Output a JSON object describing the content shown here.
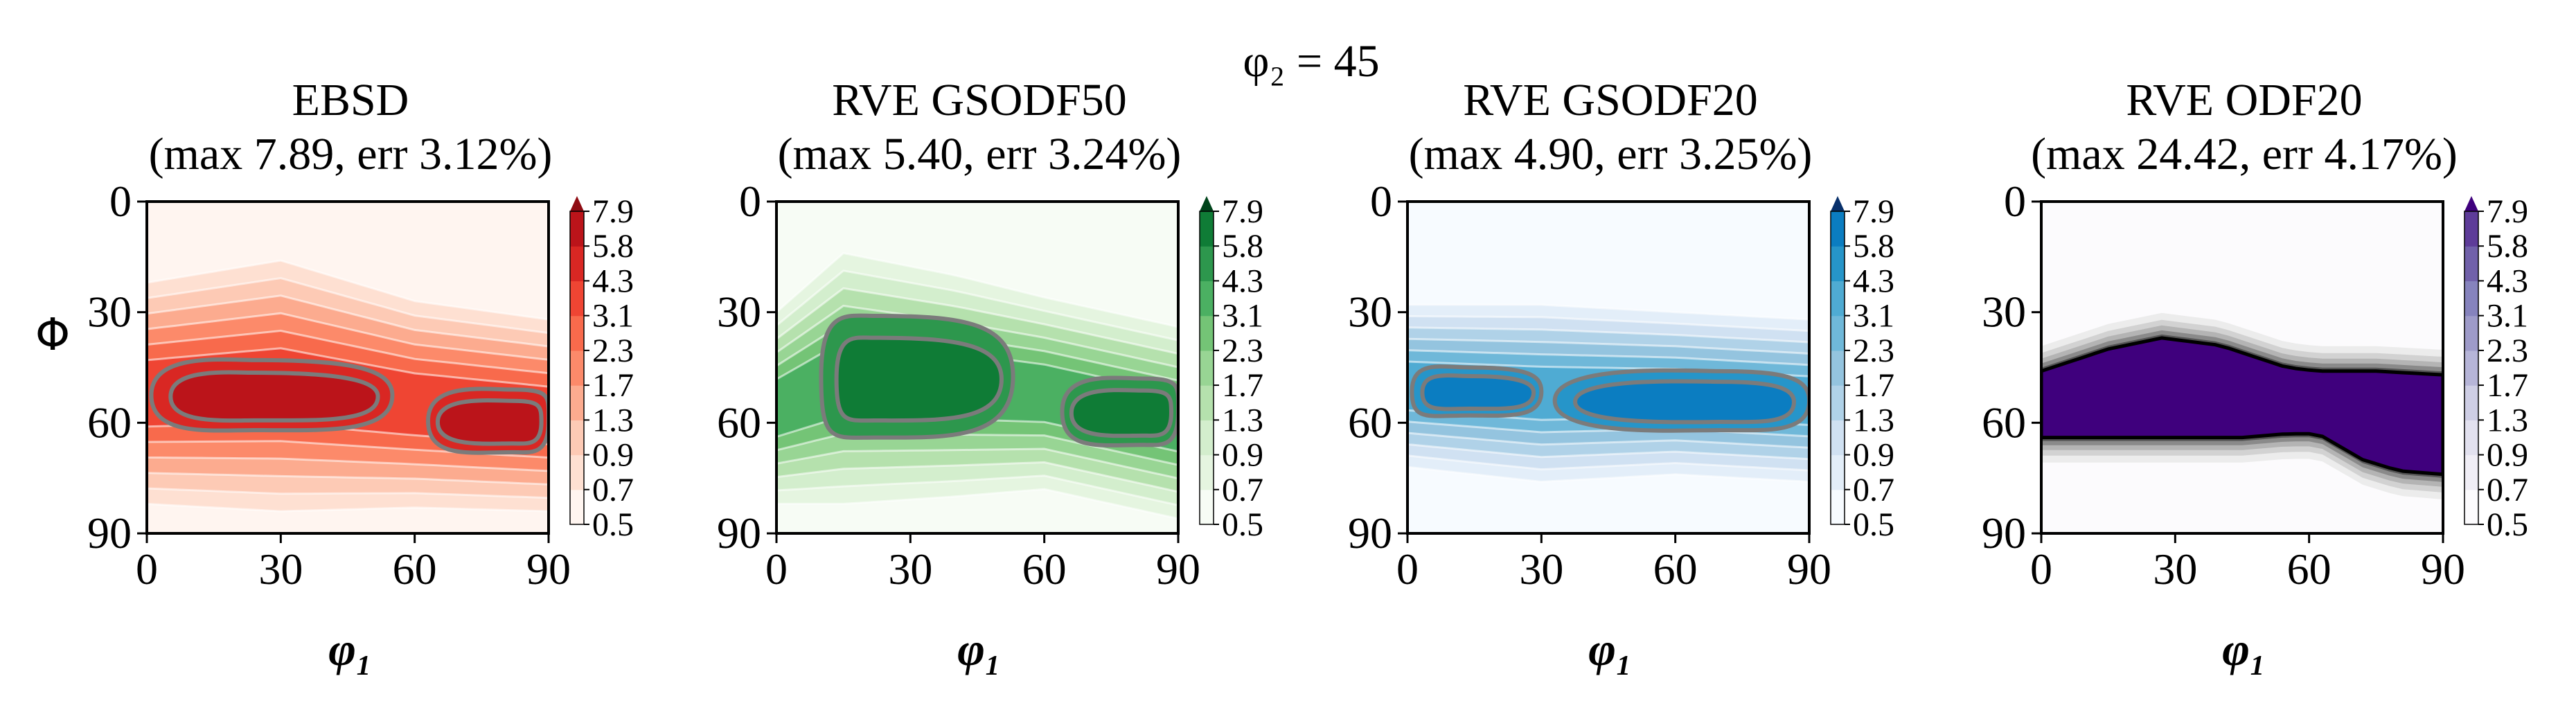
{
  "figure": {
    "suptitle": "φ₂ = 45",
    "ylabel": "Φ",
    "xlabel": "φ₁"
  },
  "chart_data": [
    {
      "type": "heatmap",
      "title_line1": "EBSD",
      "title_line2": "(max 7.89, err 3.12%)",
      "xlabel": "φ₁",
      "ylabel": "Φ",
      "xlim": [
        0,
        90
      ],
      "ylim": [
        90,
        0
      ],
      "xticks": [
        0,
        30,
        60,
        90
      ],
      "yticks": [
        0,
        30,
        60,
        90
      ],
      "colorbar_levels": [
        0.5,
        0.7,
        0.9,
        1.3,
        1.7,
        2.3,
        3.1,
        4.3,
        5.8,
        7.9
      ],
      "colors": [
        "#fff5f0",
        "#fee0d2",
        "#fdcab5",
        "#fcab8f",
        "#fc8a6a",
        "#f86a4c",
        "#ef4533",
        "#d92723",
        "#bb141a",
        "#8f0c13"
      ],
      "band_centers": [
        [
          0,
          52
        ],
        [
          30,
          50
        ],
        [
          60,
          55
        ],
        [
          90,
          58
        ]
      ],
      "band_halfwidths": [
        [
          0,
          30
        ],
        [
          30,
          34
        ],
        [
          60,
          28
        ],
        [
          90,
          26
        ]
      ],
      "core_lobes": [
        {
          "x0": 1,
          "x1": 55,
          "ytop": 43,
          "ybot": 62,
          "peak_x": 24
        },
        {
          "x0": 63,
          "x1": 90,
          "ytop": 51,
          "ybot": 68,
          "peak_x": 82
        }
      ]
    },
    {
      "type": "heatmap",
      "title_line1": "RVE GSODF50",
      "title_line2": "(max 5.40, err 3.24%)",
      "xlabel": "φ₁",
      "ylabel": "Φ",
      "xlim": [
        0,
        90
      ],
      "ylim": [
        90,
        0
      ],
      "xticks": [
        0,
        30,
        60,
        90
      ],
      "yticks": [
        0,
        30,
        60,
        90
      ],
      "colorbar_levels": [
        0.5,
        0.7,
        0.9,
        1.3,
        1.7,
        2.3,
        3.1,
        4.3,
        5.8,
        7.9
      ],
      "colors": [
        "#f7fcf5",
        "#e5f5e0",
        "#d3eecd",
        "#b5e1ad",
        "#98d594",
        "#74c476",
        "#4bb062",
        "#2d974d",
        "#0f7c36",
        "#00441b"
      ],
      "band_centers": [
        [
          0,
          56
        ],
        [
          15,
          48
        ],
        [
          40,
          50
        ],
        [
          60,
          52
        ],
        [
          90,
          60
        ]
      ],
      "band_halfwidths": [
        [
          0,
          26
        ],
        [
          15,
          34
        ],
        [
          40,
          30
        ],
        [
          60,
          26
        ],
        [
          90,
          26
        ]
      ],
      "core_lobes": [
        {
          "x0": 10,
          "x1": 53,
          "ytop": 31,
          "ybot": 64,
          "peak_x": 22
        },
        {
          "x0": 64,
          "x1": 90,
          "ytop": 48,
          "ybot": 66,
          "peak_x": 82
        }
      ]
    },
    {
      "type": "heatmap",
      "title_line1": "RVE GSODF20",
      "title_line2": "(max 4.90, err 3.25%)",
      "xlabel": "φ₁",
      "ylabel": "Φ",
      "xlim": [
        0,
        90
      ],
      "ylim": [
        90,
        0
      ],
      "xticks": [
        0,
        30,
        60,
        90
      ],
      "yticks": [
        0,
        30,
        60,
        90
      ],
      "colorbar_levels": [
        0.5,
        0.7,
        0.9,
        1.3,
        1.7,
        2.3,
        3.1,
        4.3,
        5.8,
        7.9
      ],
      "colors": [
        "#f7fbff",
        "#e3eef9",
        "#d0e1f2",
        "#b0d2e8",
        "#94c4df",
        "#6fb8d9",
        "#4fabd3",
        "#2695c9",
        "#0b7dc1",
        "#08306b"
      ],
      "band_centers": [
        [
          0,
          50
        ],
        [
          30,
          52
        ],
        [
          60,
          52
        ],
        [
          90,
          54
        ]
      ],
      "band_halfwidths": [
        [
          0,
          22
        ],
        [
          30,
          24
        ],
        [
          60,
          22
        ],
        [
          90,
          22
        ]
      ],
      "core_lobes": [
        {
          "x0": 1,
          "x1": 30,
          "ytop": 45,
          "ybot": 58,
          "peak_x": 14
        },
        {
          "x0": 33,
          "x1": 90,
          "ytop": 46,
          "ybot": 62,
          "peak_x": 70
        }
      ]
    },
    {
      "type": "heatmap",
      "title_line1": "RVE ODF20",
      "title_line2": "(max 24.42, err 4.17%)",
      "xlabel": "φ₁",
      "ylabel": "Φ",
      "xlim": [
        0,
        90
      ],
      "ylim": [
        90,
        0
      ],
      "xticks": [
        0,
        30,
        60,
        90
      ],
      "yticks": [
        0,
        30,
        60,
        90
      ],
      "colorbar_levels": [
        0.5,
        0.7,
        0.9,
        1.3,
        1.7,
        2.3,
        3.1,
        4.3,
        5.8,
        7.9
      ],
      "colors": [
        "#fcfbfd",
        "#f0eef6",
        "#e2e1ef",
        "#cecee5",
        "#b6b5d8",
        "#9e9bc9",
        "#8683bd",
        "#7161aa",
        "#5e3c99",
        "#3f007d"
      ],
      "core_band": {
        "top_edge": [
          [
            0,
            46
          ],
          [
            15,
            40
          ],
          [
            27,
            37
          ],
          [
            40,
            39
          ],
          [
            55,
            45
          ],
          [
            62,
            46
          ],
          [
            75,
            46
          ],
          [
            90,
            47
          ]
        ],
        "bottom_edge": [
          [
            0,
            64
          ],
          [
            20,
            64
          ],
          [
            45,
            64
          ],
          [
            55,
            63
          ],
          [
            62,
            63
          ],
          [
            72,
            70
          ],
          [
            80,
            73
          ],
          [
            90,
            74
          ]
        ]
      }
    }
  ]
}
